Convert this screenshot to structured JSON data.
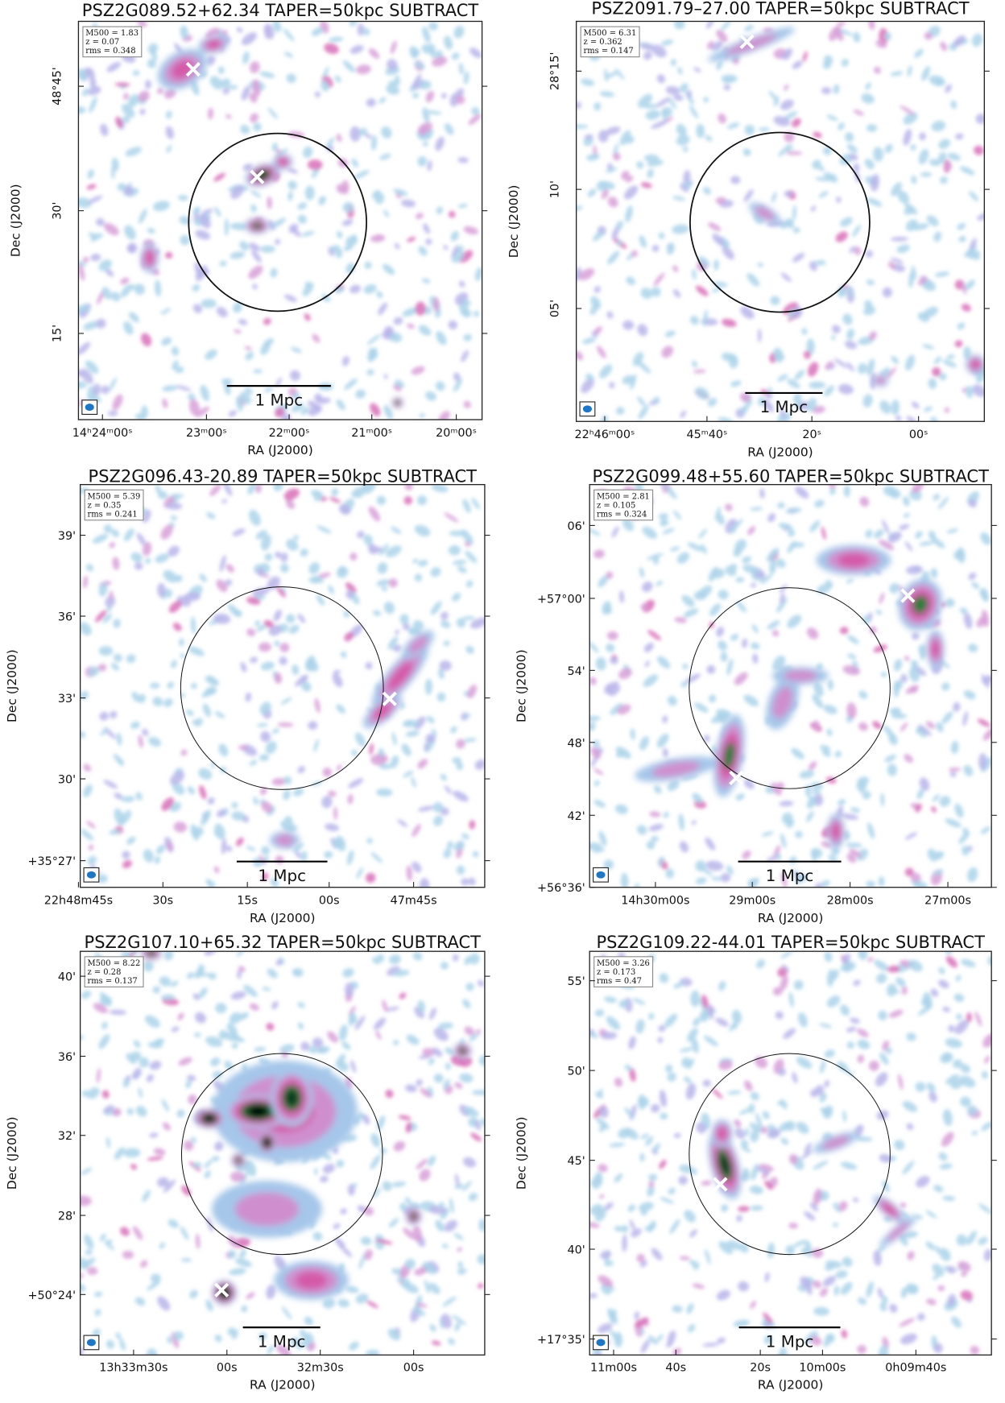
{
  "panels": [
    {
      "title": "PSZ2G089.52+62.34 TAPER=50kpc SUBTRACT",
      "info": [
        "M500 = 1.83",
        "z = 0.07",
        "rms = 0.348"
      ],
      "x_ticks": [
        "14ʰ24ᵐ00ˢ",
        "23ᵐ00ˢ",
        "22ᵐ00ˢ",
        "21ᵐ00ˢ",
        "20ᵐ00ˢ"
      ],
      "y_ticks": [
        "48°45'",
        "30'",
        "15'"
      ],
      "x_label": "RA (J2000)",
      "y_label": "Dec (J2000)",
      "scale_label": "1 Mpc"
    },
    {
      "title": "PSZ2091.79–27.00 TAPER=50kpc SUBTRACT",
      "info": [
        "M500 = 6.31",
        "z = 0.362",
        "rms = 0.147"
      ],
      "x_ticks": [
        "22ʰ46ᵐ00ˢ",
        "45ᵐ40ˢ",
        "20ˢ",
        "00ˢ"
      ],
      "y_ticks": [
        "28°15'",
        "10'",
        "05'"
      ],
      "x_label": "RA (J2000)",
      "y_label": "Dec (J2000)",
      "scale_label": "1 Mpc"
    },
    {
      "title": "PSZ2G096.43-20.89 TAPER=50kpc SUBTRACT",
      "info": [
        "M500 = 5.39",
        "z = 0.35",
        "rms = 0.241"
      ],
      "x_ticks": [
        "22h48m45s",
        "30s",
        "15s",
        "00s",
        "47m45s"
      ],
      "y_ticks": [
        "39'",
        "36'",
        "33'",
        "30'",
        "+35°27'"
      ],
      "x_label": "RA (J2000)",
      "y_label": "Dec (J2000)",
      "scale_label": "1 Mpc"
    },
    {
      "title": "PSZ2G099.48+55.60 TAPER=50kpc SUBTRACT",
      "info": [
        "M500 = 2.81",
        "z = 0.105",
        "rms = 0.324"
      ],
      "x_ticks": [
        "14h30m00s",
        "29m00s",
        "28m00s",
        "27m00s"
      ],
      "y_ticks": [
        "06'",
        "+57°00'",
        "54'",
        "48'",
        "42'",
        "+56°36'"
      ],
      "x_label": "RA (J2000)",
      "y_label": "Dec (J2000)",
      "scale_label": "1 Mpc"
    },
    {
      "title": "PSZ2G107.10+65.32 TAPER=50kpc SUBTRACT",
      "info": [
        "M500 = 8.22",
        "z = 0.28",
        "rms = 0.137"
      ],
      "x_ticks": [
        "13h33m30s",
        "00s",
        "32m30s",
        "00s"
      ],
      "y_ticks": [
        "40'",
        "36'",
        "32'",
        "28'",
        "+50°24'"
      ],
      "x_label": "RA (J2000)",
      "y_label": "Dec (J2000)",
      "scale_label": "1 Mpc"
    },
    {
      "title": "PSZ2G109.22-44.01 TAPER=50kpc SUBTRACT",
      "info": [
        "M500 = 3.26",
        "z = 0.173",
        "rms = 0.47"
      ],
      "x_ticks": [
        "11m00s",
        "40s",
        "20s",
        "10m00s",
        "0h09m40s"
      ],
      "y_ticks": [
        "55'",
        "50'",
        "45'",
        "40'",
        "+17°35'"
      ],
      "x_label": "RA (J2000)",
      "y_label": "Dec (J2000)",
      "scale_label": "1 Mpc"
    }
  ]
}
